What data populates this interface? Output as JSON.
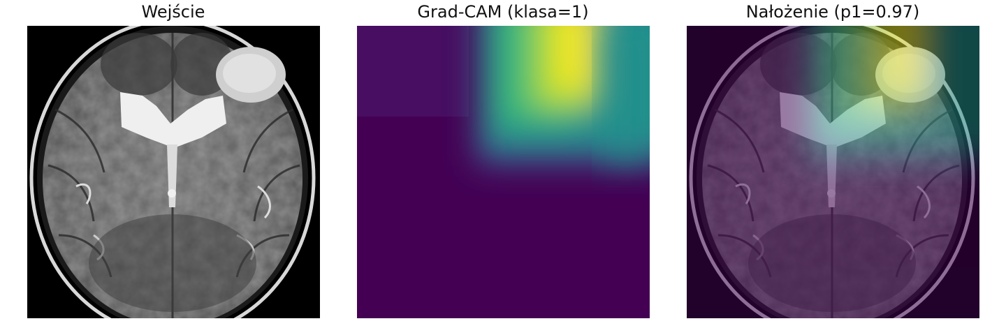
{
  "figure": {
    "panels": [
      {
        "id": "input",
        "title": "Wejście",
        "image": "brain-mri-axial-slice"
      },
      {
        "id": "gradcam",
        "title": "Grad-CAM (klasa=1)",
        "image": "gradcam-heatmap",
        "colormap": "viridis"
      },
      {
        "id": "overlay",
        "title": "Nałożenie (p1=0.97)",
        "image": "mri-with-heatmap-overlay"
      }
    ]
  },
  "colors": {
    "background": "#ffffff",
    "viridis_low": "#440154",
    "viridis_mid": "#21908c",
    "viridis_high": "#fde725"
  }
}
